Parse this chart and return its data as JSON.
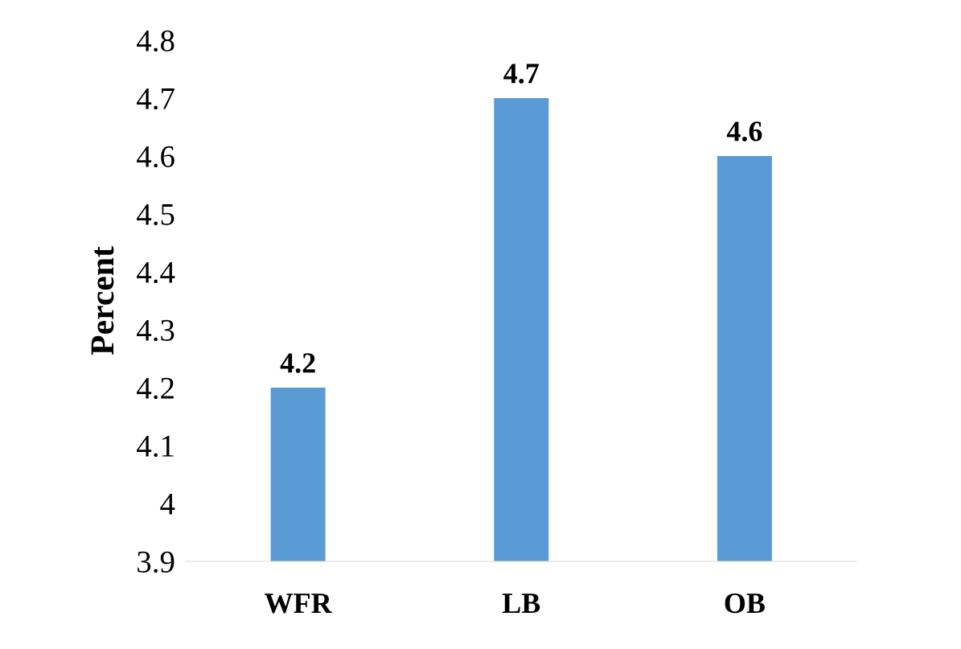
{
  "chart_data": {
    "type": "bar",
    "ylabel": "Percent",
    "categories": [
      "WFR",
      "LB",
      "OB"
    ],
    "values": [
      4.2,
      4.7,
      4.6
    ],
    "color": "#5b9bd5",
    "ylim": [
      3.9,
      4.8
    ],
    "yticks": [
      3.9,
      4.0,
      4.1,
      4.2,
      4.3,
      4.4,
      4.5,
      4.6,
      4.7,
      4.8
    ],
    "data_labels": true,
    "grid": false,
    "legend": false
  }
}
